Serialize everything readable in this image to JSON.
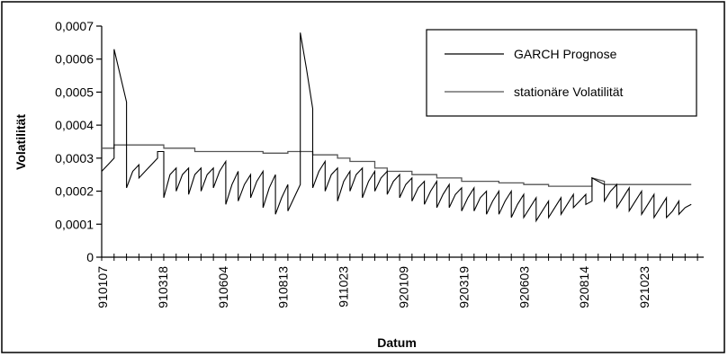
{
  "chart_data": {
    "type": "line",
    "title": "",
    "xlabel": "Datum",
    "ylabel": "Volatilität",
    "ylim": [
      0,
      0.0007
    ],
    "y_ticks": [
      "0",
      "0,0001",
      "0,0002",
      "0,0003",
      "0,0004",
      "0,0005",
      "0,0006",
      "0,0007"
    ],
    "x_ticks": [
      "910107",
      "910318",
      "910604",
      "910813",
      "911023",
      "920109",
      "920319",
      "920603",
      "920814",
      "921023"
    ],
    "x_range": [
      0,
      97
    ],
    "legend_position": "top-right",
    "grid": false,
    "series": [
      {
        "name": "GARCH Prognose",
        "color": "#000000",
        "points": [
          [
            0,
            0.00026
          ],
          [
            1,
            0.00028
          ],
          [
            2,
            0.0003
          ],
          [
            2,
            0.00063
          ],
          [
            3,
            0.00055
          ],
          [
            4,
            0.00047
          ],
          [
            4,
            0.00021
          ],
          [
            5,
            0.00026
          ],
          [
            6,
            0.00028
          ],
          [
            6,
            0.00024
          ],
          [
            7,
            0.00026
          ],
          [
            8,
            0.00028
          ],
          [
            9,
            0.0003
          ],
          [
            9,
            0.00032
          ],
          [
            10,
            0.00032
          ],
          [
            10,
            0.00018
          ],
          [
            11,
            0.00025
          ],
          [
            12,
            0.00027
          ],
          [
            12,
            0.0002
          ],
          [
            13,
            0.00025
          ],
          [
            14,
            0.00027
          ],
          [
            14,
            0.00019
          ],
          [
            15,
            0.00025
          ],
          [
            16,
            0.00027
          ],
          [
            16,
            0.0002
          ],
          [
            17,
            0.00025
          ],
          [
            18,
            0.00027
          ],
          [
            18,
            0.00021
          ],
          [
            19,
            0.00026
          ],
          [
            20,
            0.00029
          ],
          [
            20,
            0.00016
          ],
          [
            21,
            0.00022
          ],
          [
            22,
            0.00026
          ],
          [
            22,
            0.00017
          ],
          [
            23,
            0.00022
          ],
          [
            24,
            0.00025
          ],
          [
            24,
            0.00018
          ],
          [
            25,
            0.00023
          ],
          [
            26,
            0.00026
          ],
          [
            26,
            0.00015
          ],
          [
            27,
            0.00021
          ],
          [
            28,
            0.00025
          ],
          [
            28,
            0.00013
          ],
          [
            29,
            0.00018
          ],
          [
            30,
            0.00022
          ],
          [
            30,
            0.00014
          ],
          [
            31,
            0.00018
          ],
          [
            32,
            0.00022
          ],
          [
            32,
            0.00068
          ],
          [
            33,
            0.00057
          ],
          [
            34,
            0.00045
          ],
          [
            34,
            0.00021
          ],
          [
            35,
            0.00026
          ],
          [
            36,
            0.00029
          ],
          [
            36,
            0.0002
          ],
          [
            37,
            0.00025
          ],
          [
            38,
            0.00027
          ],
          [
            38,
            0.00017
          ],
          [
            39,
            0.00023
          ],
          [
            40,
            0.00026
          ],
          [
            40,
            0.0002
          ],
          [
            41,
            0.00025
          ],
          [
            42,
            0.00027
          ],
          [
            42,
            0.00018
          ],
          [
            43,
            0.00023
          ],
          [
            44,
            0.00026
          ],
          [
            44,
            0.0002
          ],
          [
            45,
            0.00024
          ],
          [
            46,
            0.00026
          ],
          [
            46,
            0.00019
          ],
          [
            47,
            0.00023
          ],
          [
            48,
            0.00025
          ],
          [
            48,
            0.00018
          ],
          [
            49,
            0.00022
          ],
          [
            50,
            0.00024
          ],
          [
            50,
            0.00017
          ],
          [
            51,
            0.00021
          ],
          [
            52,
            0.00023
          ],
          [
            52,
            0.00016
          ],
          [
            53,
            0.0002
          ],
          [
            54,
            0.00023
          ],
          [
            54,
            0.00015
          ],
          [
            55,
            0.00019
          ],
          [
            56,
            0.00022
          ],
          [
            56,
            0.00015
          ],
          [
            57,
            0.00019
          ],
          [
            58,
            0.00021
          ],
          [
            58,
            0.00014
          ],
          [
            59,
            0.00018
          ],
          [
            60,
            0.00021
          ],
          [
            60,
            0.00014
          ],
          [
            61,
            0.00018
          ],
          [
            62,
            0.0002
          ],
          [
            62,
            0.00013
          ],
          [
            63,
            0.00017
          ],
          [
            64,
            0.0002
          ],
          [
            64,
            0.00013
          ],
          [
            65,
            0.00017
          ],
          [
            66,
            0.0002
          ],
          [
            66,
            0.00012
          ],
          [
            67,
            0.00016
          ],
          [
            68,
            0.00019
          ],
          [
            68,
            0.00012
          ],
          [
            69,
            0.00015
          ],
          [
            70,
            0.00018
          ],
          [
            70,
            0.00011
          ],
          [
            71,
            0.00014
          ],
          [
            72,
            0.00017
          ],
          [
            72,
            0.00012
          ],
          [
            73,
            0.00015
          ],
          [
            74,
            0.00018
          ],
          [
            74,
            0.00013
          ],
          [
            75,
            0.00016
          ],
          [
            76,
            0.00019
          ],
          [
            76,
            0.00015
          ],
          [
            77,
            0.00017
          ],
          [
            78,
            0.00019
          ],
          [
            78,
            0.00016
          ],
          [
            79,
            0.00017
          ],
          [
            79,
            0.00024
          ],
          [
            80,
            0.00023
          ],
          [
            81,
            0.00022
          ],
          [
            81,
            0.00017
          ],
          [
            82,
            0.0002
          ],
          [
            83,
            0.00022
          ],
          [
            83,
            0.00015
          ],
          [
            84,
            0.00018
          ],
          [
            85,
            0.00021
          ],
          [
            85,
            0.00014
          ],
          [
            86,
            0.00017
          ],
          [
            87,
            0.0002
          ],
          [
            87,
            0.00013
          ],
          [
            88,
            0.00016
          ],
          [
            89,
            0.00019
          ],
          [
            89,
            0.00012
          ],
          [
            90,
            0.00015
          ],
          [
            91,
            0.00018
          ],
          [
            91,
            0.00012
          ],
          [
            92,
            0.00014
          ],
          [
            93,
            0.00017
          ],
          [
            93,
            0.00013
          ],
          [
            94,
            0.00015
          ],
          [
            95,
            0.00016
          ]
        ]
      },
      {
        "name": "stationäre Volatilität",
        "color": "#555555",
        "points": [
          [
            0,
            0.00033
          ],
          [
            2,
            0.00033
          ],
          [
            2,
            0.00034
          ],
          [
            10,
            0.00034
          ],
          [
            10,
            0.00033
          ],
          [
            15,
            0.00033
          ],
          [
            15,
            0.00032
          ],
          [
            26,
            0.00032
          ],
          [
            26,
            0.000315
          ],
          [
            30,
            0.000315
          ],
          [
            30,
            0.00032
          ],
          [
            34,
            0.00032
          ],
          [
            34,
            0.00031
          ],
          [
            38,
            0.00031
          ],
          [
            38,
            0.0003
          ],
          [
            40,
            0.0003
          ],
          [
            40,
            0.00029
          ],
          [
            44,
            0.00029
          ],
          [
            44,
            0.00027
          ],
          [
            46,
            0.00027
          ],
          [
            46,
            0.00026
          ],
          [
            50,
            0.00026
          ],
          [
            50,
            0.00025
          ],
          [
            54,
            0.00025
          ],
          [
            54,
            0.00024
          ],
          [
            58,
            0.00024
          ],
          [
            58,
            0.00023
          ],
          [
            64,
            0.00023
          ],
          [
            64,
            0.000225
          ],
          [
            68,
            0.000225
          ],
          [
            68,
            0.00022
          ],
          [
            72,
            0.00022
          ],
          [
            72,
            0.000215
          ],
          [
            79,
            0.000215
          ],
          [
            79,
            0.00024
          ],
          [
            80,
            0.000235
          ],
          [
            81,
            0.00023
          ],
          [
            81,
            0.00022
          ],
          [
            95,
            0.00022
          ]
        ]
      }
    ]
  }
}
